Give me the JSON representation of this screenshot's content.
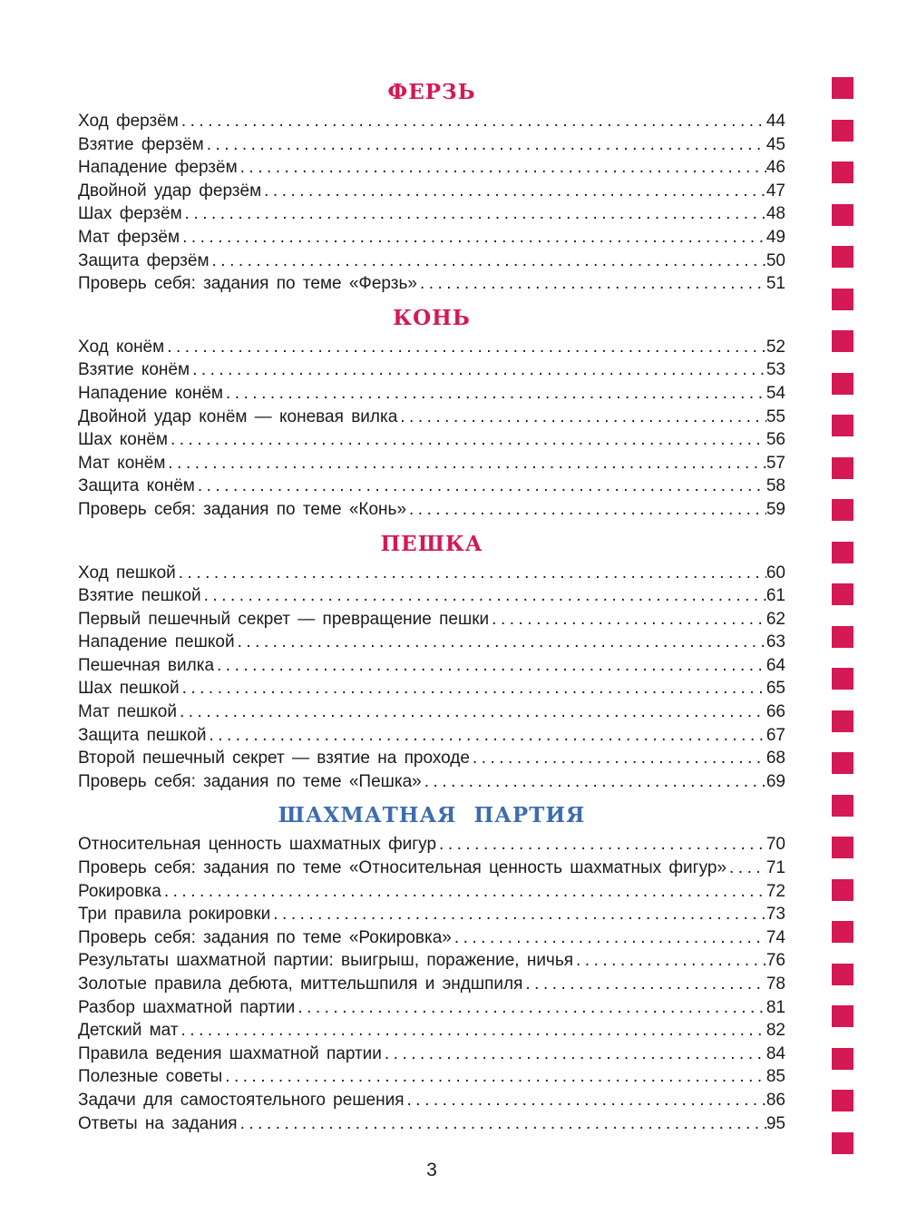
{
  "page": {
    "number": "3"
  },
  "colors": {
    "accent_pink": "#d41955",
    "accent_blue": "#3e6cb0",
    "text": "#1b1b1b"
  },
  "decoration": {
    "squares_count": 26,
    "square_top_start": 85,
    "square_spacing": 46.5
  },
  "toc": {
    "sections": [
      {
        "title": "ФЕРЗЬ",
        "style": "pink",
        "entries": [
          {
            "label": "Ход ферзём",
            "page": "44"
          },
          {
            "label": "Взятие ферзём",
            "page": "45"
          },
          {
            "label": "Нападение ферзём",
            "page": "46"
          },
          {
            "label": "Двойной удар ферзём",
            "page": "47"
          },
          {
            "label": "Шах ферзём",
            "page": "48"
          },
          {
            "label": "Мат ферзём",
            "page": "49"
          },
          {
            "label": "Защита ферзём",
            "page": "50"
          },
          {
            "label": "Проверь себя: задания по теме «Ферзь»",
            "page": "51"
          }
        ]
      },
      {
        "title": "КОНЬ",
        "style": "pink",
        "entries": [
          {
            "label": "Ход конём",
            "page": "52"
          },
          {
            "label": "Взятие конём",
            "page": "53"
          },
          {
            "label": "Нападение конём",
            "page": "54"
          },
          {
            "label": "Двойной удар конём — коневая вилка",
            "page": "55"
          },
          {
            "label": "Шах конём",
            "page": "56"
          },
          {
            "label": "Мат конём",
            "page": "57"
          },
          {
            "label": "Защита конём",
            "page": "58"
          },
          {
            "label": "Проверь себя: задания по теме «Конь»",
            "page": "59"
          }
        ]
      },
      {
        "title": "ПЕШКА",
        "style": "pink",
        "entries": [
          {
            "label": "Ход пешкой",
            "page": "60"
          },
          {
            "label": "Взятие пешкой",
            "page": "61"
          },
          {
            "label": "Первый пешечный секрет — превращение пешки",
            "page": "62"
          },
          {
            "label": "Нападение пешкой",
            "page": "63"
          },
          {
            "label": "Пешечная вилка",
            "page": "64"
          },
          {
            "label": "Шах пешкой",
            "page": "65"
          },
          {
            "label": "Мат пешкой",
            "page": "66"
          },
          {
            "label": "Защита пешкой",
            "page": "67"
          },
          {
            "label": "Второй пешечный секрет — взятие на проходе",
            "page": "68"
          },
          {
            "label": "Проверь себя: задания по теме «Пешка»",
            "page": "69"
          }
        ]
      },
      {
        "title": "ШАХМАТНАЯ ПАРТИЯ",
        "style": "blue",
        "entries": [
          {
            "label": "Относительная ценность шахматных фигур",
            "page": "70"
          },
          {
            "label": "Проверь себя: задания по теме «Относительная ценность шахматных фигур»",
            "page": "71"
          },
          {
            "label": "Рокировка",
            "page": "72"
          },
          {
            "label": "Три правила рокировки",
            "page": "73"
          },
          {
            "label": "Проверь себя: задания по теме «Рокировка»",
            "page": "74"
          },
          {
            "label": "Результаты шахматной партии: выигрыш, поражение, ничья",
            "page": "76"
          },
          {
            "label": "Золотые правила дебюта, миттельшпиля и эндшпиля",
            "page": "78"
          },
          {
            "label": "Разбор шахматной партии",
            "page": "81"
          },
          {
            "label": "Детский мат",
            "page": "82"
          },
          {
            "label": "Правила ведения шахматной партии",
            "page": "84"
          },
          {
            "label": "Полезные советы",
            "page": "85"
          },
          {
            "label": "Задачи для самостоятельного решения",
            "page": "86"
          },
          {
            "label": "Ответы на задания",
            "page": "95"
          }
        ]
      }
    ]
  }
}
